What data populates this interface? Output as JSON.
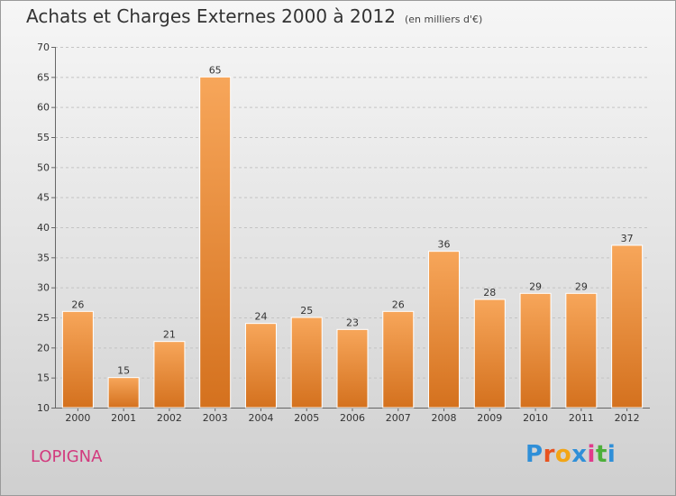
{
  "header": {
    "title": "Achats et Charges Externes 2000 à 2012",
    "subtitle": "(en milliers d'€)"
  },
  "footer": {
    "commune": "LOPIGNA",
    "brand": "Proxiti",
    "brand_colors": [
      "#2f8fd8",
      "#e8531f",
      "#f2a516",
      "#2f8fd8",
      "#e13a8a",
      "#4daf3a",
      "#2f8fd8"
    ]
  },
  "chart_data": {
    "type": "bar",
    "categories": [
      "2000",
      "2001",
      "2002",
      "2003",
      "2004",
      "2005",
      "2006",
      "2007",
      "2008",
      "2009",
      "2010",
      "2011",
      "2012"
    ],
    "values": [
      26,
      15,
      21,
      65,
      24,
      25,
      23,
      26,
      36,
      28,
      29,
      29,
      37
    ],
    "data_labels": [
      "26",
      "15",
      "21",
      "65",
      "24",
      "25",
      "23",
      "26",
      "36",
      "28",
      "29",
      "29",
      "37"
    ],
    "ylim": [
      10,
      70
    ],
    "yticks": [
      10,
      15,
      20,
      25,
      30,
      35,
      40,
      45,
      50,
      55,
      60,
      65,
      70
    ],
    "grid": true,
    "bar_color_top": "#f7a65a",
    "bar_color_bottom": "#d4711e"
  }
}
